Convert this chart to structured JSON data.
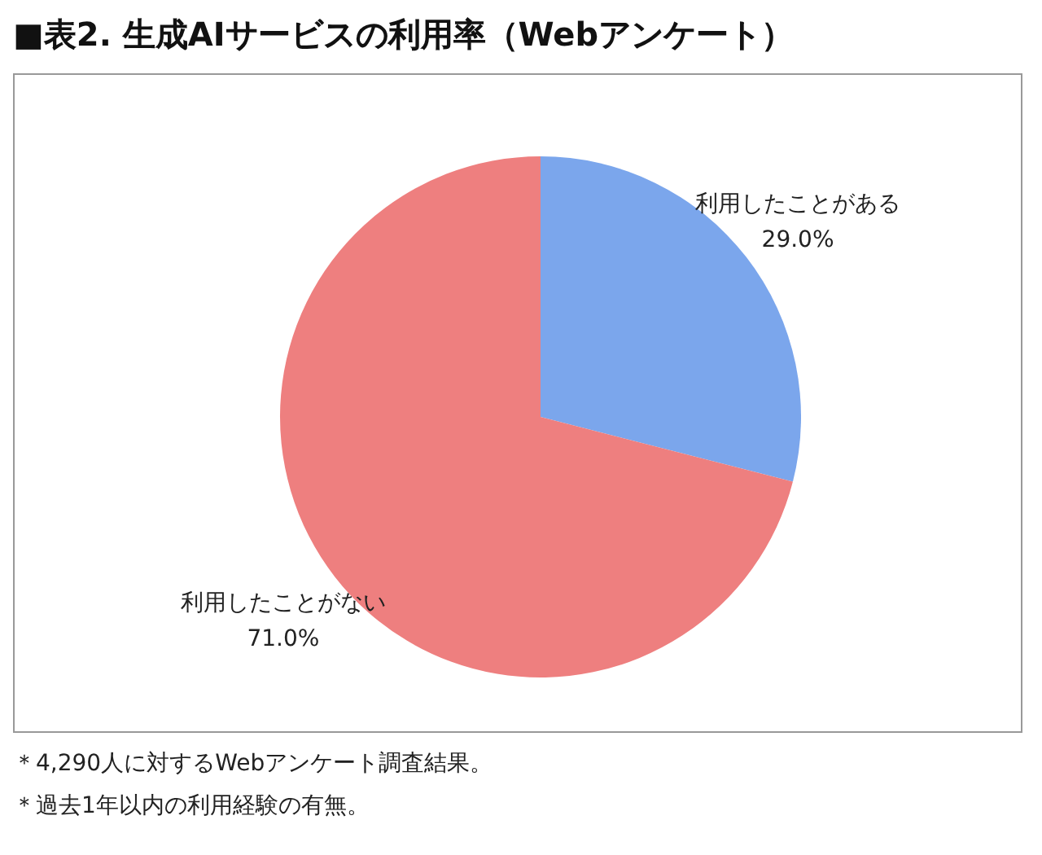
{
  "chart_data": {
    "type": "pie",
    "title": "■表2. 生成AIサービスの利用率（Webアンケート）",
    "categories": [
      "利用したことがある",
      "利用したことがない"
    ],
    "values": [
      29.0,
      71.0
    ],
    "colors": [
      "#7ba6ec",
      "#ee7f7f"
    ],
    "value_labels": [
      "29.0%",
      "71.0%"
    ],
    "legend": false,
    "annotations": [
      "＊4,290人に対するWebアンケート調査結果。",
      "＊過去1年以内の利用経験の有無。"
    ]
  }
}
